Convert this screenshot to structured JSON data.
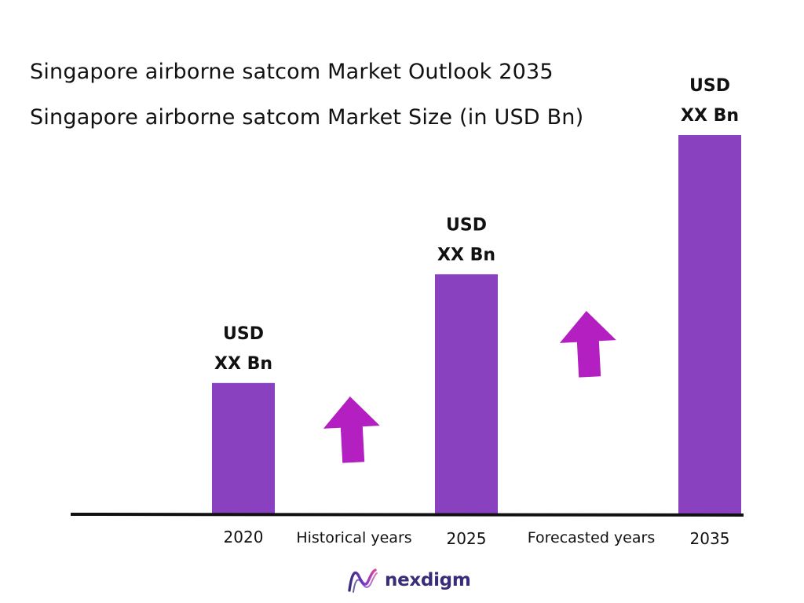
{
  "brand": {
    "name": "nexdigm",
    "primary": "#3a2c79",
    "accent": "#7a3ad1"
  },
  "chart_data": {
    "type": "bar",
    "title": "Singapore airborne satcom Market Outlook 2035",
    "subtitle": "Singapore airborne satcom Market Size (in USD Bn)",
    "categories": [
      "2020",
      "2025",
      "2035"
    ],
    "values": [
      3,
      5.5,
      8.7
    ],
    "ylim": [
      0,
      10
    ],
    "data_labels": [
      [
        "USD",
        "XX Bn"
      ],
      [
        "USD",
        "XX Bn"
      ],
      [
        "USD",
        "XX Bn"
      ]
    ],
    "period_labels": [
      "Historical years",
      "Forecasted years"
    ],
    "bar_color": "#8a41bf",
    "arrow_color": "#b31fc0",
    "axis_color": "#111111",
    "grid": false,
    "legend": "none"
  }
}
